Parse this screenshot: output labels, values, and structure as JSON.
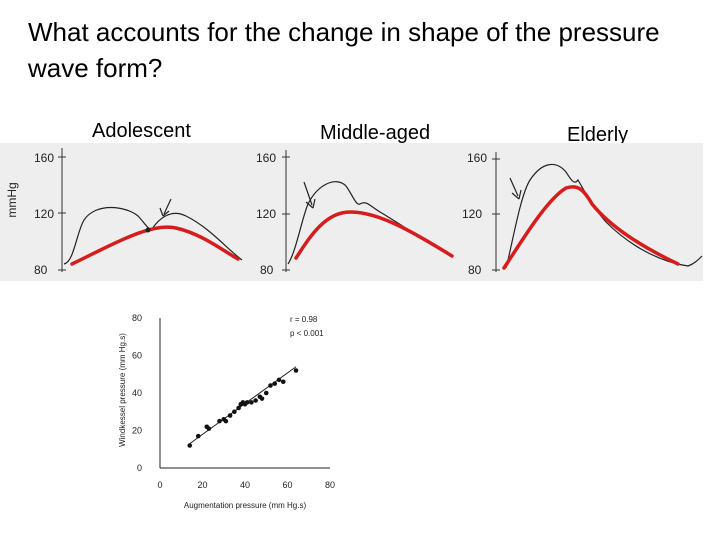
{
  "title": "What accounts for the change in shape of the pressure wave form?",
  "panels": [
    {
      "label": "Adolescent"
    },
    {
      "label": "Middle-aged"
    },
    {
      "label": "Elderly"
    }
  ],
  "waveform_axis": {
    "unit_label": "mmHg",
    "ticks": [
      "160",
      "120",
      "80"
    ]
  },
  "colors": {
    "overlay_curve": "#d61c1c",
    "trace": "#222222",
    "film_background": "#eeeeee"
  },
  "chart_data": {
    "type": "scatter",
    "title": "",
    "xlabel": "Augmentation pressure (mm Hg.s)",
    "ylabel": "Windkessel pressure (mm Hg.s)",
    "xlim": [
      0,
      80
    ],
    "ylim": [
      0,
      80
    ],
    "x_ticks": [
      "0",
      "20",
      "40",
      "60",
      "80"
    ],
    "y_ticks": [
      "0",
      "20",
      "40",
      "60",
      "80"
    ],
    "annotations": [
      "r = 0.98",
      "p < 0.001"
    ],
    "points": [
      [
        14,
        12
      ],
      [
        18,
        17
      ],
      [
        22,
        22
      ],
      [
        23,
        21
      ],
      [
        28,
        25
      ],
      [
        30,
        26
      ],
      [
        31,
        25
      ],
      [
        33,
        28
      ],
      [
        35,
        30
      ],
      [
        37,
        32
      ],
      [
        38,
        34
      ],
      [
        39,
        35
      ],
      [
        40,
        34
      ],
      [
        41,
        35
      ],
      [
        43,
        35
      ],
      [
        45,
        36
      ],
      [
        47,
        38
      ],
      [
        48,
        37
      ],
      [
        50,
        40
      ],
      [
        52,
        44
      ],
      [
        54,
        45
      ],
      [
        56,
        47
      ],
      [
        58,
        46
      ],
      [
        64,
        52
      ]
    ],
    "fit_line": [
      [
        14,
        13
      ],
      [
        64,
        54
      ]
    ],
    "grid": false
  }
}
